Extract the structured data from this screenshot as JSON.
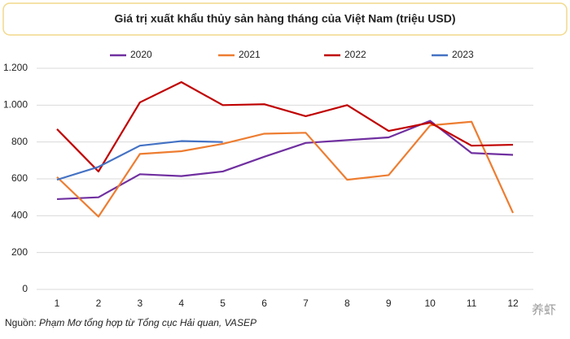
{
  "chart_data": {
    "type": "line",
    "title": "Giá trị xuất khẩu thủy sản hàng tháng của Việt Nam (triệu USD)",
    "categories": [
      "1",
      "2",
      "3",
      "4",
      "5",
      "6",
      "7",
      "8",
      "9",
      "10",
      "11",
      "12"
    ],
    "series": [
      {
        "name": "2020",
        "color": "#7030a0",
        "values": [
          490,
          500,
          625,
          615,
          640,
          720,
          795,
          810,
          825,
          915,
          740,
          730
        ]
      },
      {
        "name": "2021",
        "color": "#ed7d31",
        "values": [
          610,
          395,
          735,
          750,
          790,
          845,
          850,
          595,
          620,
          890,
          910,
          415
        ]
      },
      {
        "name": "2022",
        "color": "#c00000",
        "values": [
          870,
          640,
          1015,
          1125,
          1000,
          1005,
          940,
          1000,
          860,
          905,
          780,
          785
        ]
      },
      {
        "name": "2023",
        "color": "#4472c4",
        "values": [
          595,
          665,
          780,
          805,
          800,
          null,
          null,
          null,
          null,
          null,
          null,
          null
        ]
      }
    ],
    "ylim": [
      0,
      1200
    ],
    "yticks": [
      0,
      200,
      400,
      600,
      800,
      {
        "value": 1000,
        "label": "1.000"
      },
      {
        "value": 1200,
        "label": "1.200"
      }
    ],
    "grid": true,
    "legend": "top",
    "source_prefix": "Nguồn: ",
    "source": "Phạm Mơ tổng hợp từ Tổng cục Hải quan, VASEP",
    "watermark": "养虾"
  }
}
